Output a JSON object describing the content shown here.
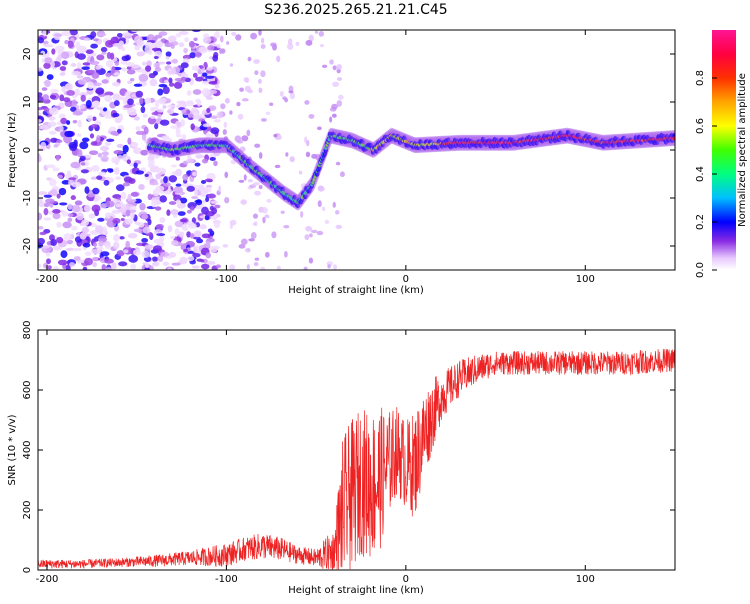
{
  "title": "S236.2025.265.21.21.C45",
  "chart_data": [
    {
      "type": "heatmap",
      "xlabel": "Height of straight line (km)",
      "ylabel": "Frequency (Hz)",
      "xlim": [
        -205,
        150
      ],
      "ylim": [
        -25,
        25
      ],
      "xticks": [
        -200,
        -100,
        0,
        100
      ],
      "yticks": [
        -20,
        -10,
        0,
        10,
        20
      ],
      "colorbar": {
        "label": "Normalized spectral amplitude",
        "range": [
          0,
          1
        ],
        "ticks": [
          0.0,
          0.2,
          0.4,
          0.6,
          0.8
        ]
      },
      "ridge": [
        {
          "x": -143,
          "f": 1
        },
        {
          "x": -130,
          "f": 0
        },
        {
          "x": -115,
          "f": 1
        },
        {
          "x": -100,
          "f": 1
        },
        {
          "x": -88,
          "f": -3
        },
        {
          "x": -78,
          "f": -6
        },
        {
          "x": -68,
          "f": -9
        },
        {
          "x": -60,
          "f": -11
        },
        {
          "x": -52,
          "f": -7
        },
        {
          "x": -42,
          "f": 3
        },
        {
          "x": -30,
          "f": 2
        },
        {
          "x": -18,
          "f": 0
        },
        {
          "x": -8,
          "f": 3
        },
        {
          "x": 5,
          "f": 1
        },
        {
          "x": 30,
          "f": 1.5
        },
        {
          "x": 60,
          "f": 1.5
        },
        {
          "x": 90,
          "f": 3
        },
        {
          "x": 110,
          "f": 1.5
        },
        {
          "x": 150,
          "f": 2.5
        }
      ]
    },
    {
      "type": "line",
      "xlabel": "Height of straight line (km)",
      "ylabel": "SNR (10 * v/v)",
      "xlim": [
        -205,
        150
      ],
      "ylim": [
        0,
        800
      ],
      "xticks": [
        -200,
        -100,
        0,
        100
      ],
      "yticks": [
        0,
        200,
        400,
        600,
        800
      ],
      "series": [
        {
          "name": "SNR",
          "color": "#ee2222",
          "x": [
            -205,
            -180,
            -160,
            -140,
            -120,
            -100,
            -90,
            -80,
            -70,
            -60,
            -50,
            -40,
            -35,
            -30,
            -25,
            -20,
            -15,
            -10,
            -5,
            0,
            5,
            10,
            15,
            20,
            30,
            40,
            50,
            60,
            80,
            100,
            120,
            150
          ],
          "mean": [
            20,
            20,
            25,
            30,
            40,
            50,
            70,
            80,
            70,
            50,
            40,
            60,
            200,
            250,
            300,
            280,
            300,
            350,
            400,
            350,
            350,
            450,
            520,
            580,
            640,
            670,
            690,
            690,
            690,
            690,
            690,
            700
          ],
          "noise": [
            15,
            15,
            15,
            20,
            25,
            40,
            40,
            45,
            40,
            30,
            30,
            80,
            250,
            250,
            250,
            250,
            250,
            180,
            150,
            150,
            180,
            150,
            120,
            80,
            60,
            50,
            40,
            40,
            40,
            40,
            40,
            40
          ]
        }
      ]
    }
  ]
}
